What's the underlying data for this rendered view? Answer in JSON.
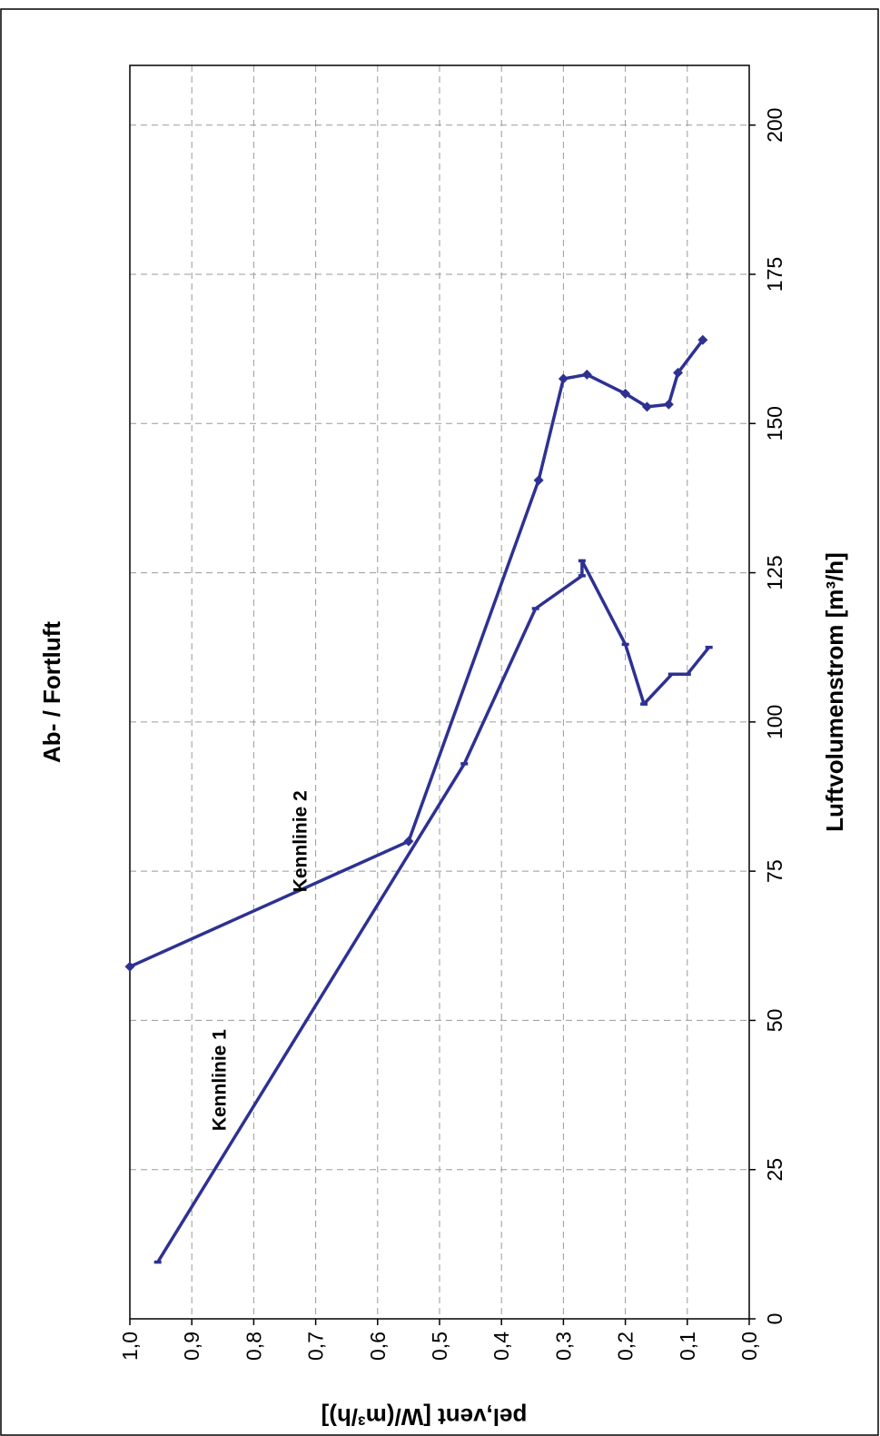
{
  "chart_data": {
    "type": "line",
    "title": "Ab- / Fortluft",
    "xlabel": "Luftvolumenstrom [m³/h]",
    "ylabel": "pel,vent [W/(m³/h)]",
    "xlim": [
      0,
      210
    ],
    "ylim": [
      0,
      1.0
    ],
    "x_ticks": [
      "0",
      "25",
      "50",
      "75",
      "100",
      "125",
      "150",
      "175",
      "200"
    ],
    "y_ticks": [
      "0,0",
      "0,1",
      "0,2",
      "0,3",
      "0,4",
      "0,5",
      "0,6",
      "0,7",
      "0,8",
      "0,9",
      "1,0"
    ],
    "grid": true,
    "rotation": "rotated 90° counter-clockwise on the page",
    "series": [
      {
        "name": "Kennlinie 1",
        "color": "#2e3192",
        "marker": "dash",
        "points": [
          {
            "x": 9.5,
            "y": 0.955
          },
          {
            "x": 93,
            "y": 0.46
          },
          {
            "x": 119,
            "y": 0.345
          },
          {
            "x": 124.5,
            "y": 0.27
          },
          {
            "x": 127,
            "y": 0.27
          },
          {
            "x": 113,
            "y": 0.2
          },
          {
            "x": 103,
            "y": 0.17
          },
          {
            "x": 108,
            "y": 0.125
          },
          {
            "x": 108,
            "y": 0.1
          },
          {
            "x": 112.5,
            "y": 0.065
          }
        ]
      },
      {
        "name": "Kennlinie 2",
        "color": "#2e3192",
        "marker": "diamond",
        "points": [
          {
            "x": 59,
            "y": 1.0
          },
          {
            "x": 80,
            "y": 0.55
          },
          {
            "x": 140.5,
            "y": 0.34
          },
          {
            "x": 157.5,
            "y": 0.3
          },
          {
            "x": 158.2,
            "y": 0.262
          },
          {
            "x": 155,
            "y": 0.2
          },
          {
            "x": 152.8,
            "y": 0.165
          },
          {
            "x": 153.2,
            "y": 0.13
          },
          {
            "x": 158.5,
            "y": 0.115
          },
          {
            "x": 164,
            "y": 0.075
          }
        ]
      }
    ],
    "annotations": [
      {
        "text": "Kennlinie 1",
        "x": 40,
        "y": 0.845
      },
      {
        "text": "Kennlinie 2",
        "x": 80,
        "y": 0.715
      }
    ]
  }
}
